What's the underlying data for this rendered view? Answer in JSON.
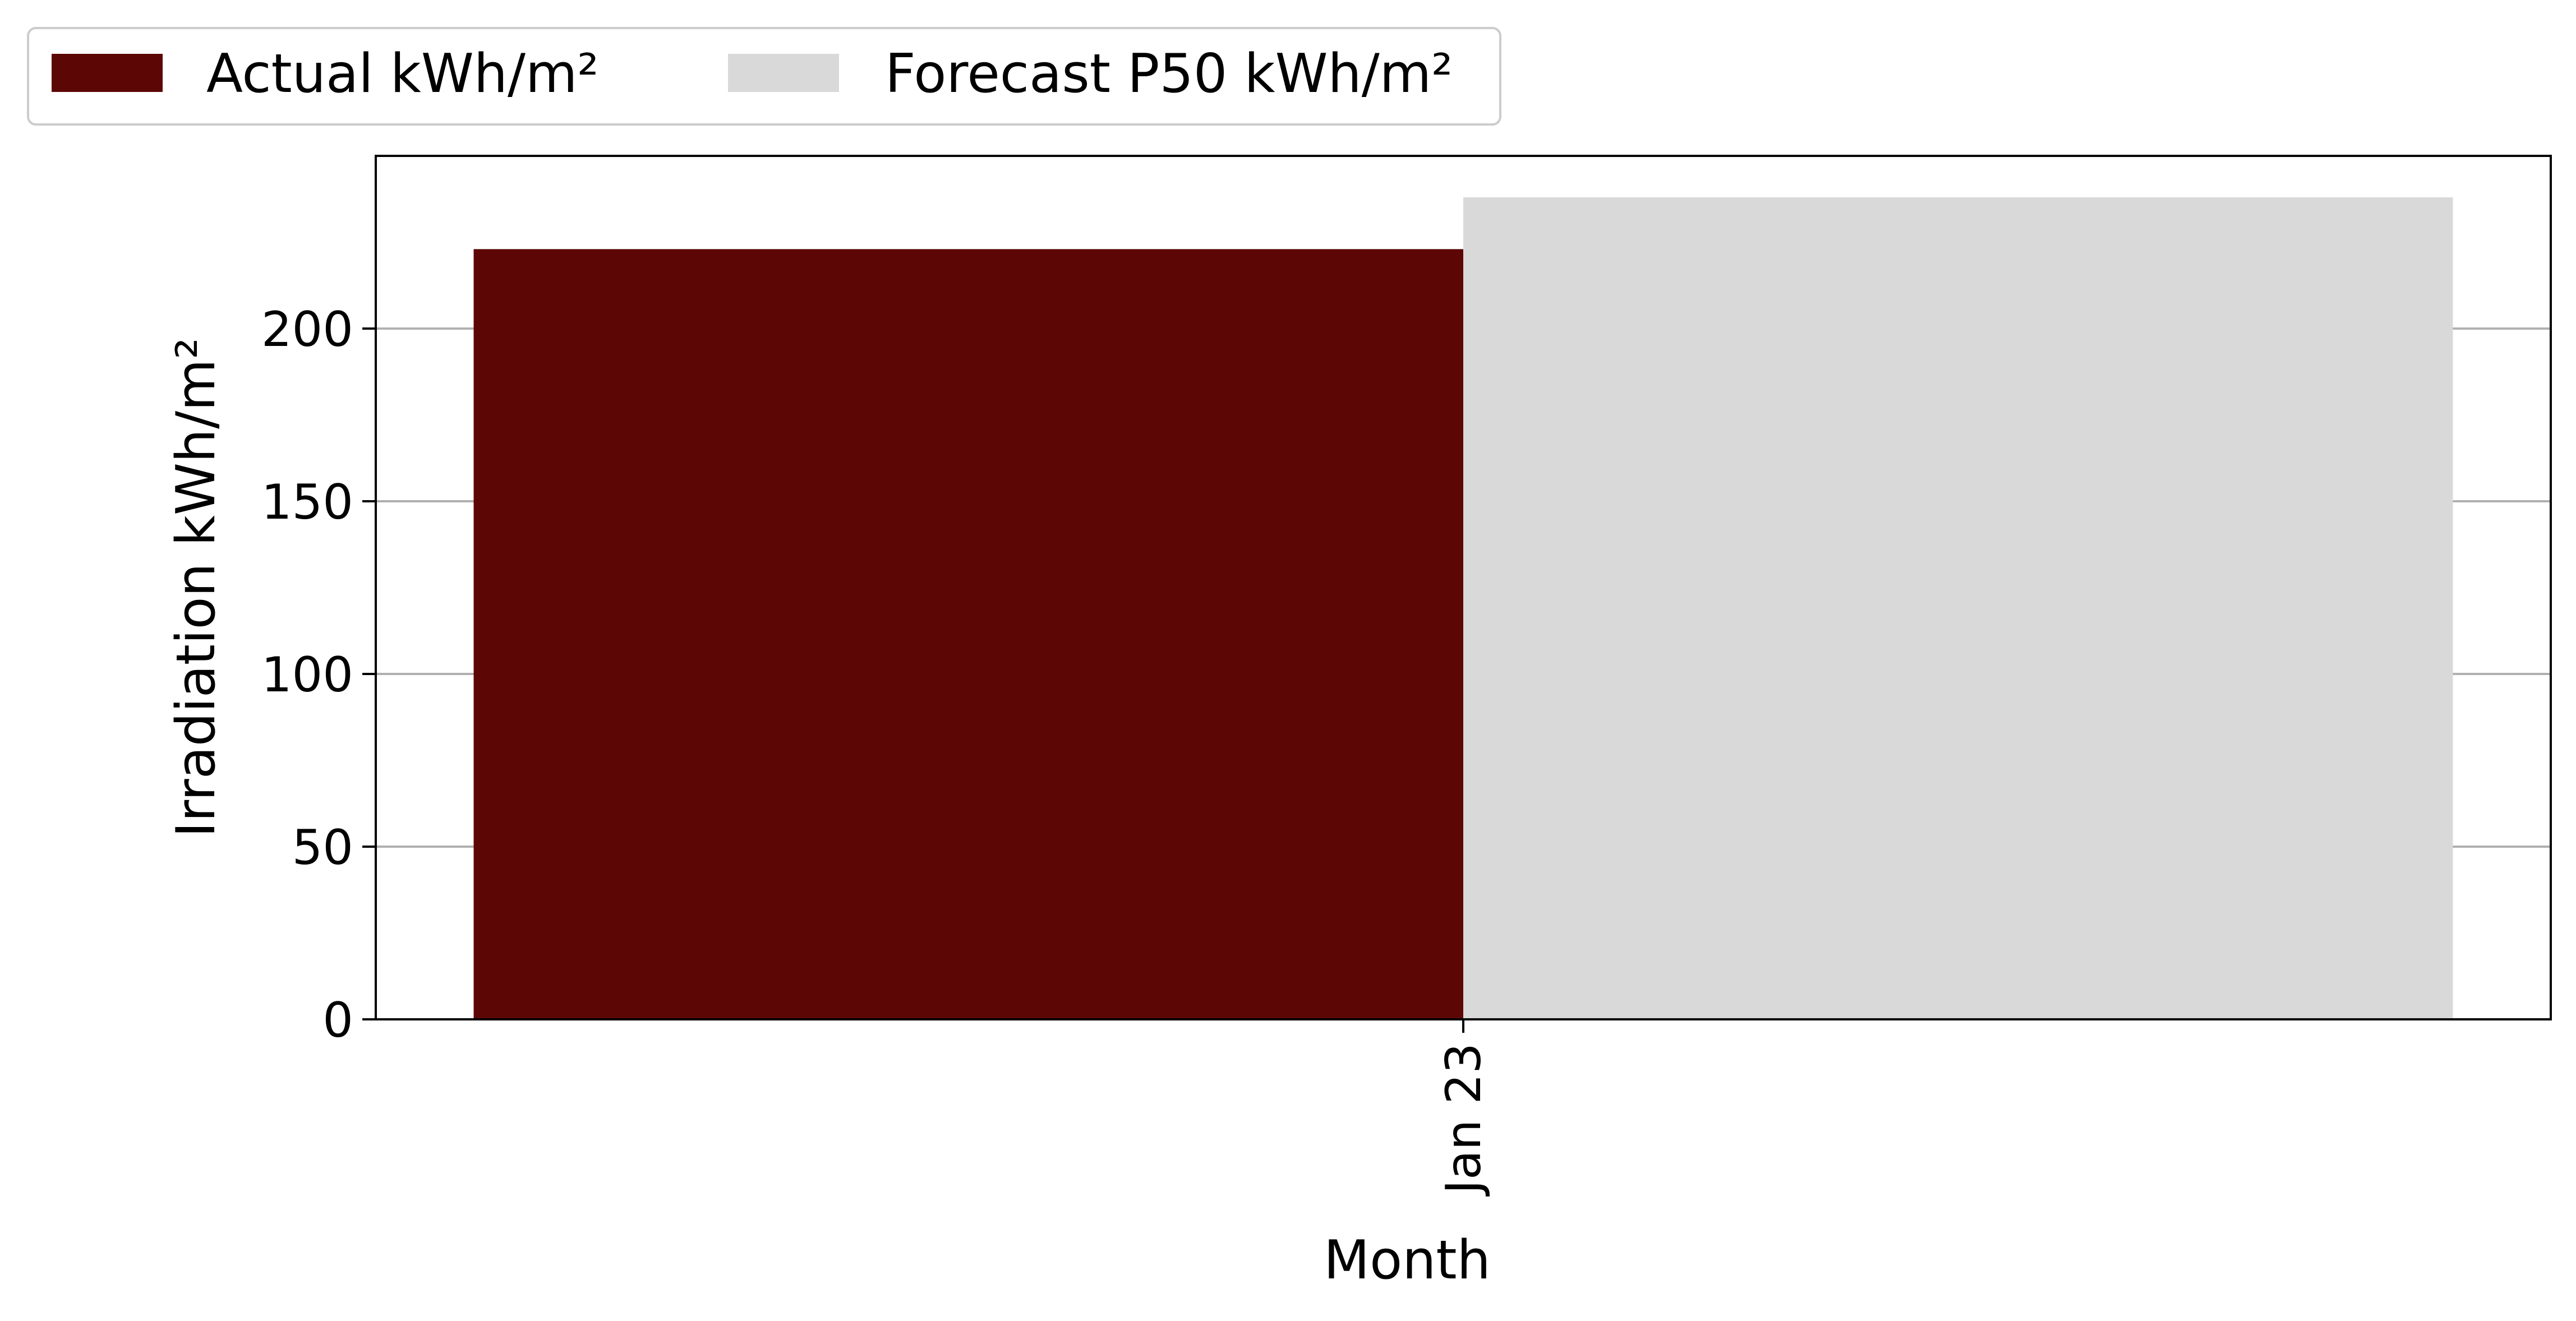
{
  "chart_data": {
    "type": "bar",
    "categories": [
      "Jan 23"
    ],
    "series": [
      {
        "name": "Actual kWh/m²",
        "values": [
          223
        ],
        "color": "#5c0606"
      },
      {
        "name": "Forecast P50 kWh/m²",
        "values": [
          238
        ],
        "color": "#d9d9d9"
      }
    ],
    "xlabel": "Month",
    "ylabel": "Irradiation kWh/m²",
    "ylim": [
      0,
      250
    ],
    "yticks": [
      0,
      50,
      100,
      150,
      200
    ],
    "grid": "horizontal",
    "legend_placement": "top-left, outside plot",
    "x_tick_rotation": "vertical"
  }
}
